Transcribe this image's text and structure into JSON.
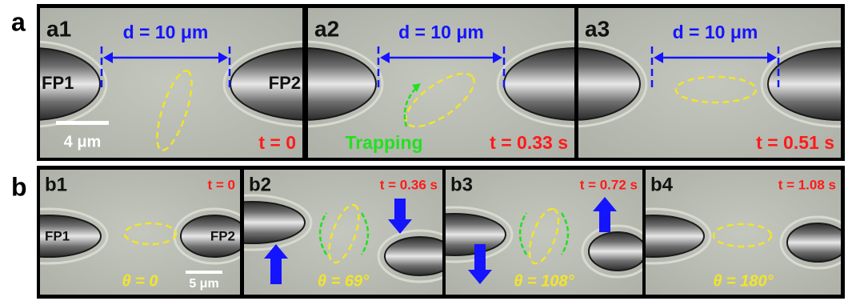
{
  "panel_a": {
    "label": "a",
    "subpanels": [
      {
        "label": "a1",
        "distance": "d = 10 μm",
        "probe_left": "FP1",
        "probe_right": "FP2",
        "scale_bar": "4 μm",
        "time": "t = 0"
      },
      {
        "label": "a2",
        "distance": "d = 10 μm",
        "annotation": "Trapping",
        "time": "t = 0.33 s"
      },
      {
        "label": "a3",
        "distance": "d = 10 μm",
        "time": "t = 0.51 s"
      }
    ]
  },
  "panel_b": {
    "label": "b",
    "subpanels": [
      {
        "label": "b1",
        "time": "t = 0",
        "probe_left": "FP1",
        "probe_right": "FP2",
        "angle": "θ = 0",
        "scale_bar": "5 μm"
      },
      {
        "label": "b2",
        "time": "t = 0.36 s",
        "angle": "θ = 69°"
      },
      {
        "label": "b3",
        "time": "t = 0.72 s",
        "angle": "θ = 108°"
      },
      {
        "label": "b4",
        "time": "t = 1.08 s",
        "angle": "θ = 180°"
      }
    ]
  }
}
